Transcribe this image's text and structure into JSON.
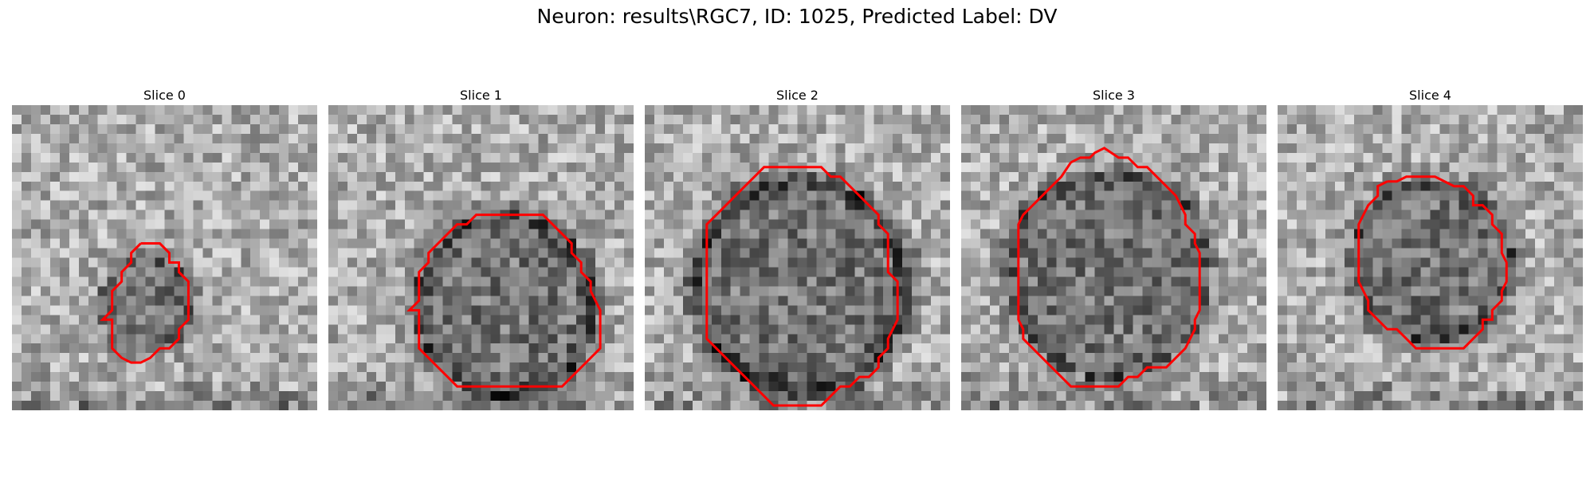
{
  "figure": {
    "title": "Neuron: results\\RGC7, ID: 1025, Predicted Label: DV",
    "contour_color": "#ff0000"
  },
  "slices": [
    {
      "title": "Slice 0",
      "seed": 11,
      "dark_ring": 0.12,
      "contour": [
        [
          13.5,
          14.5
        ],
        [
          15.5,
          14.5
        ],
        [
          16.5,
          15.5
        ],
        [
          16.5,
          16.5
        ],
        [
          17.5,
          16.5
        ],
        [
          17.5,
          17.5
        ],
        [
          18.5,
          18.5
        ],
        [
          18.5,
          19.5
        ],
        [
          18.5,
          20.5
        ],
        [
          18.5,
          21.5
        ],
        [
          18.5,
          22.5
        ],
        [
          17.5,
          23.5
        ],
        [
          17.5,
          24.5
        ],
        [
          16.5,
          25.5
        ],
        [
          15.5,
          25.5
        ],
        [
          14.5,
          26.5
        ],
        [
          13.5,
          27
        ],
        [
          12.5,
          27
        ],
        [
          11.5,
          26.5
        ],
        [
          10.5,
          25.5
        ],
        [
          10.5,
          24.5
        ],
        [
          10.5,
          23.5
        ],
        [
          10.5,
          22.5
        ],
        [
          9.5,
          22.5
        ],
        [
          10.5,
          21.5
        ],
        [
          10.5,
          20.5
        ],
        [
          10.5,
          19.5
        ],
        [
          11.5,
          18.5
        ],
        [
          11.5,
          17.5
        ],
        [
          12.5,
          16.5
        ],
        [
          12.5,
          15.5
        ]
      ]
    },
    {
      "title": "Slice 1",
      "seed": 23,
      "dark_ring": 0.22,
      "contour": [
        [
          17.5,
          11.5
        ],
        [
          18.5,
          11.5
        ],
        [
          19.5,
          11.5
        ],
        [
          20.5,
          11.5
        ],
        [
          21.5,
          11.5
        ],
        [
          22.5,
          11.5
        ],
        [
          23.5,
          12.5
        ],
        [
          24.5,
          13.5
        ],
        [
          25.5,
          14.5
        ],
        [
          25.5,
          15.5
        ],
        [
          26.5,
          16.5
        ],
        [
          26.5,
          17.5
        ],
        [
          27.5,
          18.5
        ],
        [
          27.5,
          19.5
        ],
        [
          28,
          20.5
        ],
        [
          28.5,
          21.5
        ],
        [
          28.5,
          22.5
        ],
        [
          28.5,
          23.5
        ],
        [
          28.5,
          24.5
        ],
        [
          28.5,
          25.5
        ],
        [
          27.5,
          26.5
        ],
        [
          26.5,
          27.5
        ],
        [
          25.5,
          28.5
        ],
        [
          24.5,
          29.5
        ],
        [
          23.5,
          29.5
        ],
        [
          22.5,
          29.5
        ],
        [
          21.5,
          29.5
        ],
        [
          20.5,
          29.5
        ],
        [
          19.5,
          29.5
        ],
        [
          18.5,
          29.5
        ],
        [
          17.5,
          29.5
        ],
        [
          16.5,
          29.5
        ],
        [
          15.5,
          29.5
        ],
        [
          14.5,
          29.5
        ],
        [
          13.5,
          29.5
        ],
        [
          12.5,
          28.5
        ],
        [
          11.5,
          27.5
        ],
        [
          10.5,
          26.5
        ],
        [
          9.5,
          25.5
        ],
        [
          9.5,
          24.5
        ],
        [
          9.5,
          23.5
        ],
        [
          9.5,
          22.5
        ],
        [
          9.5,
          21.5
        ],
        [
          8.5,
          21.5
        ],
        [
          9.5,
          20.5
        ],
        [
          9.5,
          19.5
        ],
        [
          9.5,
          18.5
        ],
        [
          9.5,
          17.5
        ],
        [
          10.5,
          16.5
        ],
        [
          10.5,
          15.5
        ],
        [
          11.5,
          14.5
        ],
        [
          12.5,
          13.5
        ],
        [
          13.5,
          12.5
        ],
        [
          14.5,
          12.5
        ],
        [
          15.5,
          11.5
        ],
        [
          16.5,
          11.5
        ]
      ]
    },
    {
      "title": "Slice 2",
      "seed": 37,
      "dark_ring": 0.3,
      "contour": [
        [
          14.5,
          6.5
        ],
        [
          15.5,
          6.5
        ],
        [
          16.5,
          6.5
        ],
        [
          17.5,
          6.5
        ],
        [
          18.5,
          6.5
        ],
        [
          19.5,
          7.5
        ],
        [
          20.5,
          7.5
        ],
        [
          21.5,
          8.5
        ],
        [
          22.5,
          9.5
        ],
        [
          23.5,
          10.5
        ],
        [
          24.5,
          11.5
        ],
        [
          24.5,
          12.5
        ],
        [
          25.5,
          13.5
        ],
        [
          25.5,
          14.5
        ],
        [
          25.5,
          15.5
        ],
        [
          25.5,
          16.5
        ],
        [
          25.5,
          17.5
        ],
        [
          26.5,
          18.5
        ],
        [
          26.5,
          19.5
        ],
        [
          26.5,
          20.5
        ],
        [
          26.5,
          21.5
        ],
        [
          26.5,
          22.5
        ],
        [
          26,
          23.5
        ],
        [
          25.5,
          24.5
        ],
        [
          25.5,
          25.5
        ],
        [
          24.5,
          26.5
        ],
        [
          24.5,
          27.5
        ],
        [
          23.5,
          28.5
        ],
        [
          22.5,
          28.5
        ],
        [
          21.5,
          29.5
        ],
        [
          20.5,
          29.5
        ],
        [
          19.5,
          30.5
        ],
        [
          18.5,
          31.5
        ],
        [
          17.5,
          31.5
        ],
        [
          16.5,
          31.5
        ],
        [
          15.5,
          31.5
        ],
        [
          14.5,
          31.5
        ],
        [
          13.5,
          31.5
        ],
        [
          12.5,
          30.5
        ],
        [
          11.5,
          29.5
        ],
        [
          10.5,
          28.5
        ],
        [
          9.5,
          27.5
        ],
        [
          8.5,
          26.5
        ],
        [
          7.5,
          25.5
        ],
        [
          6.5,
          24.5
        ],
        [
          6.5,
          23.5
        ],
        [
          6.5,
          22.5
        ],
        [
          6.5,
          21.5
        ],
        [
          6.5,
          20.5
        ],
        [
          6.5,
          19.5
        ],
        [
          6.5,
          18.5
        ],
        [
          6.5,
          17.5
        ],
        [
          6.5,
          16.5
        ],
        [
          6.5,
          15.5
        ],
        [
          6.5,
          14.5
        ],
        [
          6.5,
          13.5
        ],
        [
          6.5,
          12.5
        ],
        [
          7.5,
          11.5
        ],
        [
          8.5,
          10.5
        ],
        [
          9.5,
          9.5
        ],
        [
          10.5,
          8.5
        ],
        [
          11.5,
          7.5
        ],
        [
          12.5,
          6.5
        ],
        [
          13.5,
          6.5
        ]
      ]
    },
    {
      "title": "Slice 3",
      "seed": 53,
      "dark_ring": 0.18,
      "contour": [
        [
          11.5,
          6
        ],
        [
          12.5,
          5.5
        ],
        [
          13.5,
          5.5
        ],
        [
          14,
          5
        ],
        [
          15,
          4.5
        ],
        [
          16.5,
          5.5
        ],
        [
          17.5,
          5.5
        ],
        [
          18.5,
          6.5
        ],
        [
          19.5,
          6.5
        ],
        [
          20.5,
          7.5
        ],
        [
          21.5,
          8.5
        ],
        [
          22.5,
          9.5
        ],
        [
          23,
          10.5
        ],
        [
          23.5,
          11.5
        ],
        [
          23.5,
          12.5
        ],
        [
          24.5,
          13.5
        ],
        [
          24.5,
          14.5
        ],
        [
          25,
          15.5
        ],
        [
          25,
          16.5
        ],
        [
          25,
          17.5
        ],
        [
          25,
          18.5
        ],
        [
          25,
          19.5
        ],
        [
          25,
          20.5
        ],
        [
          25,
          21.5
        ],
        [
          24.5,
          22.5
        ],
        [
          24.5,
          23.5
        ],
        [
          24,
          24.5
        ],
        [
          23.5,
          25.5
        ],
        [
          22.5,
          26.5
        ],
        [
          21.5,
          27.5
        ],
        [
          20.5,
          27.5
        ],
        [
          19.5,
          27.5
        ],
        [
          18.5,
          28.5
        ],
        [
          17.5,
          28.5
        ],
        [
          16.5,
          29.5
        ],
        [
          15.5,
          29.5
        ],
        [
          14.5,
          29.5
        ],
        [
          13.5,
          29.5
        ],
        [
          12.5,
          29.5
        ],
        [
          11.5,
          29.5
        ],
        [
          10.5,
          28.5
        ],
        [
          9.5,
          27.5
        ],
        [
          8.5,
          26.5
        ],
        [
          7.5,
          25.5
        ],
        [
          6.5,
          24.5
        ],
        [
          6.5,
          23.5
        ],
        [
          6,
          22.5
        ],
        [
          6,
          21.5
        ],
        [
          6,
          20.5
        ],
        [
          6,
          19.5
        ],
        [
          6,
          18.5
        ],
        [
          6,
          17.5
        ],
        [
          6,
          16.5
        ],
        [
          6,
          15.5
        ],
        [
          6,
          14.5
        ],
        [
          6,
          13.5
        ],
        [
          6,
          12.5
        ],
        [
          6.5,
          11.5
        ],
        [
          7.5,
          10.5
        ],
        [
          8.5,
          9.5
        ],
        [
          9.5,
          8.5
        ],
        [
          10.5,
          7.5
        ]
      ]
    },
    {
      "title": "Slice 4",
      "seed": 71,
      "dark_ring": 0.2,
      "contour": [
        [
          11.5,
          8
        ],
        [
          12.5,
          8
        ],
        [
          13.5,
          7.5
        ],
        [
          14.5,
          7.5
        ],
        [
          15.5,
          7.5
        ],
        [
          16.5,
          7.5
        ],
        [
          17.5,
          8
        ],
        [
          18.5,
          8.5
        ],
        [
          19.5,
          8.5
        ],
        [
          20.5,
          9.5
        ],
        [
          20.5,
          10.5
        ],
        [
          21.5,
          10.5
        ],
        [
          22.5,
          11.5
        ],
        [
          22.5,
          12.5
        ],
        [
          23.5,
          13.5
        ],
        [
          23.5,
          14.5
        ],
        [
          23.5,
          15.5
        ],
        [
          24,
          16.5
        ],
        [
          24,
          17.5
        ],
        [
          24,
          18.5
        ],
        [
          23.5,
          19.5
        ],
        [
          23.5,
          20.5
        ],
        [
          22.5,
          21.5
        ],
        [
          22.5,
          22.5
        ],
        [
          21.5,
          22.5
        ],
        [
          21.5,
          23.5
        ],
        [
          20.5,
          24.5
        ],
        [
          19.5,
          25.5
        ],
        [
          18.5,
          25.5
        ],
        [
          17.5,
          25.5
        ],
        [
          16.5,
          25.5
        ],
        [
          15.5,
          25.5
        ],
        [
          14.5,
          25.5
        ],
        [
          13.5,
          24.5
        ],
        [
          12.5,
          23.5
        ],
        [
          11.5,
          23.5
        ],
        [
          10.5,
          22.5
        ],
        [
          9.5,
          21.5
        ],
        [
          9.5,
          20.5
        ],
        [
          9,
          19.5
        ],
        [
          8.5,
          18.5
        ],
        [
          8.5,
          17.5
        ],
        [
          8.5,
          16.5
        ],
        [
          8.5,
          15.5
        ],
        [
          8.5,
          14.5
        ],
        [
          8.5,
          13.5
        ],
        [
          8.5,
          12.5
        ],
        [
          9,
          11.5
        ],
        [
          9.5,
          10.5
        ],
        [
          10.5,
          9.5
        ],
        [
          10.5,
          8.5
        ]
      ]
    }
  ]
}
